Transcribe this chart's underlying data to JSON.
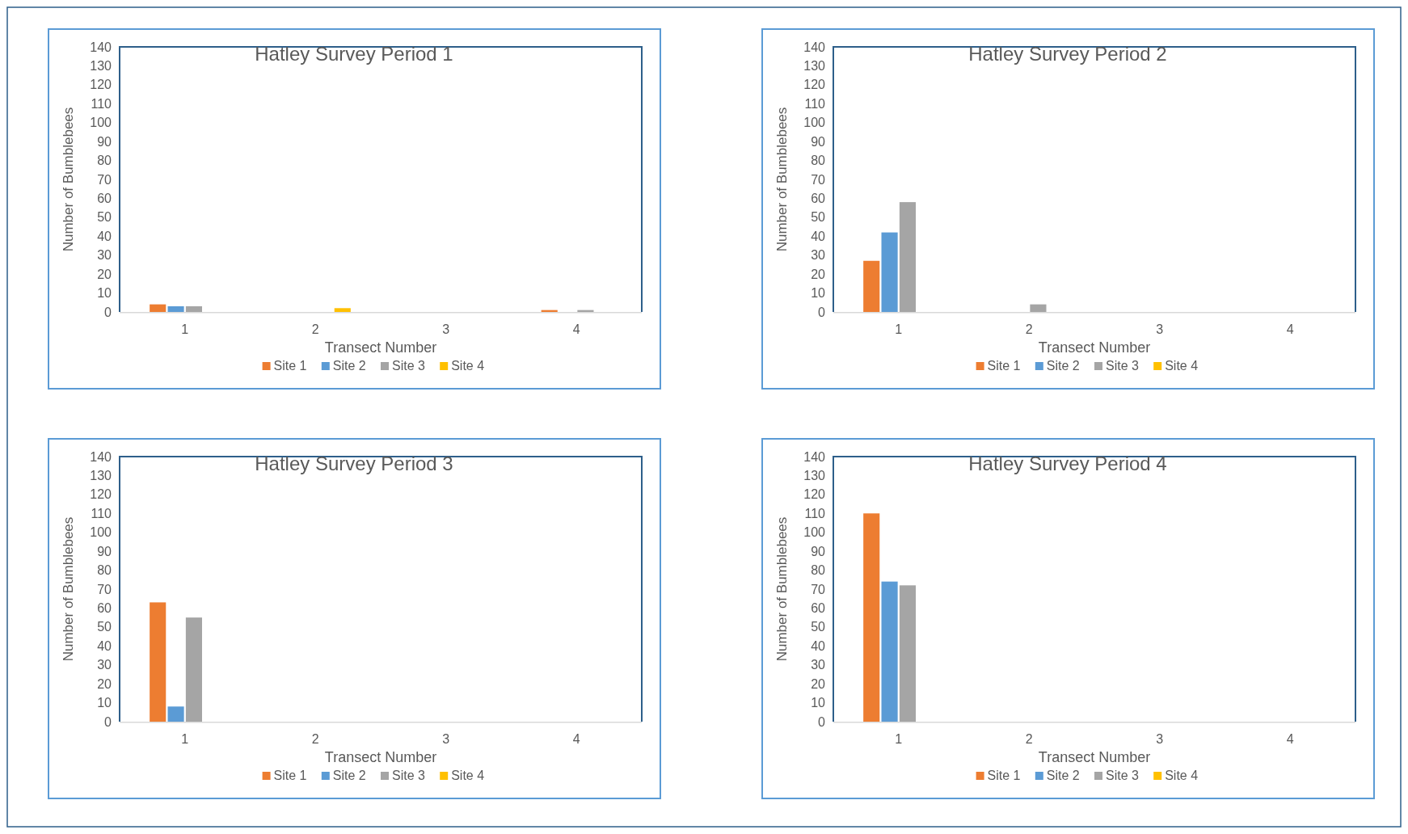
{
  "chart_data": [
    {
      "type": "bar",
      "title": "Hatley Survey Period 1",
      "xlabel": "Transect Number",
      "ylabel": "Number of Bumblebees",
      "categories": [
        "1",
        "2",
        "3",
        "4"
      ],
      "series": [
        {
          "name": "Site 1",
          "color": "#ed7d31",
          "values": [
            4,
            0,
            0,
            1
          ]
        },
        {
          "name": "Site 2",
          "color": "#5b9bd5",
          "values": [
            3,
            0,
            0,
            0
          ]
        },
        {
          "name": "Site 3",
          "color": "#a5a5a5",
          "values": [
            3,
            0,
            0,
            1
          ]
        },
        {
          "name": "Site 4",
          "color": "#ffc000",
          "values": [
            0,
            2,
            0,
            0
          ]
        }
      ],
      "ylim": [
        0,
        140
      ],
      "yticks": [
        0,
        10,
        20,
        30,
        40,
        50,
        60,
        70,
        80,
        90,
        100,
        110,
        120,
        130,
        140
      ],
      "legend": "bottom",
      "grid": false
    },
    {
      "type": "bar",
      "title": "Hatley Survey Period 2",
      "xlabel": "Transect Number",
      "ylabel": "Number of Bumblebees",
      "categories": [
        "1",
        "2",
        "3",
        "4"
      ],
      "series": [
        {
          "name": "Site 1",
          "color": "#ed7d31",
          "values": [
            27,
            0,
            0,
            0
          ]
        },
        {
          "name": "Site 2",
          "color": "#5b9bd5",
          "values": [
            42,
            0,
            0,
            0
          ]
        },
        {
          "name": "Site 3",
          "color": "#a5a5a5",
          "values": [
            58,
            4,
            0,
            0
          ]
        },
        {
          "name": "Site 4",
          "color": "#ffc000",
          "values": [
            0,
            0,
            0,
            0
          ]
        }
      ],
      "ylim": [
        0,
        140
      ],
      "yticks": [
        0,
        10,
        20,
        30,
        40,
        50,
        60,
        70,
        80,
        90,
        100,
        110,
        120,
        130,
        140
      ],
      "legend": "bottom",
      "grid": false
    },
    {
      "type": "bar",
      "title": "Hatley Survey Period 3",
      "xlabel": "Transect Number",
      "ylabel": "Number of Bumblebees",
      "categories": [
        "1",
        "2",
        "3",
        "4"
      ],
      "series": [
        {
          "name": "Site 1",
          "color": "#ed7d31",
          "values": [
            63,
            0,
            0,
            0
          ]
        },
        {
          "name": "Site 2",
          "color": "#5b9bd5",
          "values": [
            8,
            0,
            0,
            0
          ]
        },
        {
          "name": "Site 3",
          "color": "#a5a5a5",
          "values": [
            55,
            0,
            0,
            0
          ]
        },
        {
          "name": "Site 4",
          "color": "#ffc000",
          "values": [
            0,
            0,
            0,
            0
          ]
        }
      ],
      "ylim": [
        0,
        140
      ],
      "yticks": [
        0,
        10,
        20,
        30,
        40,
        50,
        60,
        70,
        80,
        90,
        100,
        110,
        120,
        130,
        140
      ],
      "legend": "bottom",
      "grid": false
    },
    {
      "type": "bar",
      "title": "Hatley Survey Period 4",
      "ylabel": "Number of Bumblebees",
      "xlabel": "Transect Number",
      "categories": [
        "1",
        "2",
        "3",
        "4"
      ],
      "series": [
        {
          "name": "Site 1",
          "color": "#ed7d31",
          "values": [
            110,
            0,
            0,
            0
          ]
        },
        {
          "name": "Site 2",
          "color": "#5b9bd5",
          "values": [
            74,
            0,
            0,
            0
          ]
        },
        {
          "name": "Site 3",
          "color": "#a5a5a5",
          "values": [
            72,
            0,
            0,
            0
          ]
        },
        {
          "name": "Site 4",
          "color": "#ffc000",
          "values": [
            0,
            0,
            0,
            0
          ]
        }
      ],
      "ylim": [
        0,
        140
      ],
      "yticks": [
        0,
        10,
        20,
        30,
        40,
        50,
        60,
        70,
        80,
        90,
        100,
        110,
        120,
        130,
        140
      ],
      "legend": "bottom",
      "grid": false
    }
  ]
}
